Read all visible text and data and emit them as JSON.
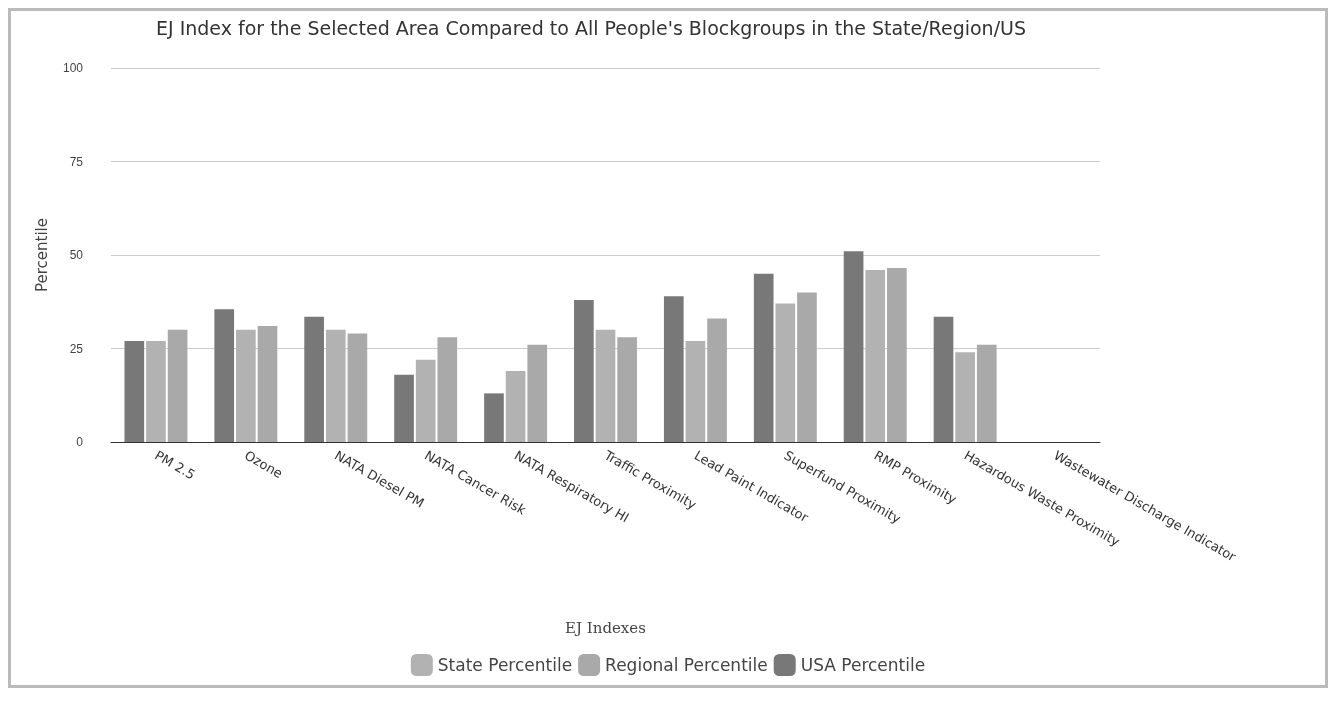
{
  "chart_data": {
    "type": "bar",
    "title": "EJ Index for the Selected Area Compared to All People's Blockgroups in the State/Region/US",
    "xlabel": "EJ Indexes",
    "ylabel": "Percentile",
    "categories": [
      "PM 2.5",
      "Ozone",
      "NATA Diesel PM",
      "NATA Cancer Risk",
      "NATA Respiratory HI",
      "Traffic Proximity",
      "Lead Paint Indicator",
      "Superfund Proximity",
      "RMP Proximity",
      "Hazardous Waste Proximity",
      "Wastewater Discharge Indicator"
    ],
    "series": [
      {
        "name": "USA Percentile",
        "color": "#787878",
        "values": [
          27,
          35.5,
          33.5,
          18,
          13,
          38,
          39,
          45,
          51,
          33.5,
          null
        ]
      },
      {
        "name": "State Percentile",
        "color": "#b2b2b2",
        "values": [
          27,
          30,
          30,
          22,
          19,
          30,
          27,
          37,
          46,
          24,
          null
        ]
      },
      {
        "name": "Regional Percentile",
        "color": "#a9a9a9",
        "values": [
          30,
          31,
          29,
          28,
          26,
          28,
          33,
          40,
          46.5,
          26,
          null
        ]
      }
    ],
    "ylim": [
      0,
      100
    ],
    "yticks": [
      0,
      25,
      50,
      75,
      100
    ],
    "grid": "y",
    "legend": "bottom"
  }
}
